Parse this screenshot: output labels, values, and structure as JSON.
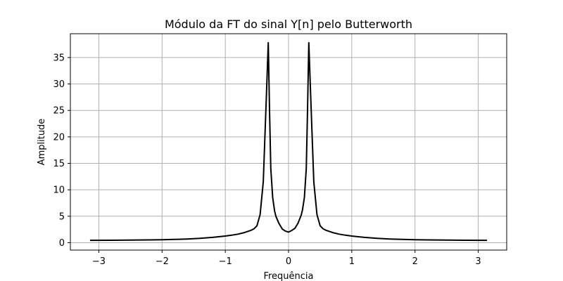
{
  "chart_data": {
    "type": "line",
    "title": "Módulo da FT do sinal Y[n] pelo Butterworth",
    "xlabel": "Frequência",
    "ylabel": "Amplitude",
    "xlim": [
      -3.45,
      3.45
    ],
    "ylim": [
      -1.4,
      39.5
    ],
    "xticks": [
      -3,
      -2,
      -1,
      0,
      1,
      2,
      3
    ],
    "xtick_labels": [
      "−3",
      "−2",
      "−1",
      "0",
      "1",
      "2",
      "3"
    ],
    "yticks": [
      0,
      5,
      10,
      15,
      20,
      25,
      30,
      35
    ],
    "ytick_labels": [
      "0",
      "5",
      "10",
      "15",
      "20",
      "25",
      "30",
      "35"
    ],
    "grid": true,
    "series": [
      {
        "color": "#000000",
        "x": [
          -3.14,
          -2.8,
          -2.5,
          -2.2,
          -2.0,
          -1.8,
          -1.6,
          -1.4,
          -1.2,
          -1.0,
          -0.9,
          -0.8,
          -0.7,
          -0.6,
          -0.55,
          -0.5,
          -0.45,
          -0.4,
          -0.35,
          -0.32,
          -0.3,
          -0.28,
          -0.25,
          -0.22,
          -0.2,
          -0.15,
          -0.1,
          -0.05,
          0.0,
          0.05,
          0.1,
          0.15,
          0.2,
          0.22,
          0.25,
          0.28,
          0.3,
          0.32,
          0.35,
          0.4,
          0.45,
          0.5,
          0.55,
          0.6,
          0.7,
          0.8,
          0.9,
          1.0,
          1.2,
          1.4,
          1.6,
          1.8,
          2.0,
          2.2,
          2.5,
          2.8,
          3.14
        ],
        "y": [
          0.45,
          0.46,
          0.48,
          0.52,
          0.56,
          0.62,
          0.7,
          0.82,
          1.0,
          1.25,
          1.42,
          1.62,
          1.9,
          2.3,
          2.6,
          3.2,
          5.3,
          11.5,
          28,
          37.8,
          25,
          14,
          8.5,
          6,
          5,
          3.6,
          2.6,
          2.2,
          2.0,
          2.3,
          2.7,
          3.7,
          5.2,
          6.2,
          8.5,
          14,
          25,
          37.8,
          28,
          11.5,
          5.3,
          3.2,
          2.6,
          2.3,
          1.9,
          1.62,
          1.42,
          1.25,
          1.0,
          0.82,
          0.7,
          0.62,
          0.56,
          0.52,
          0.48,
          0.46,
          0.45
        ]
      }
    ]
  }
}
